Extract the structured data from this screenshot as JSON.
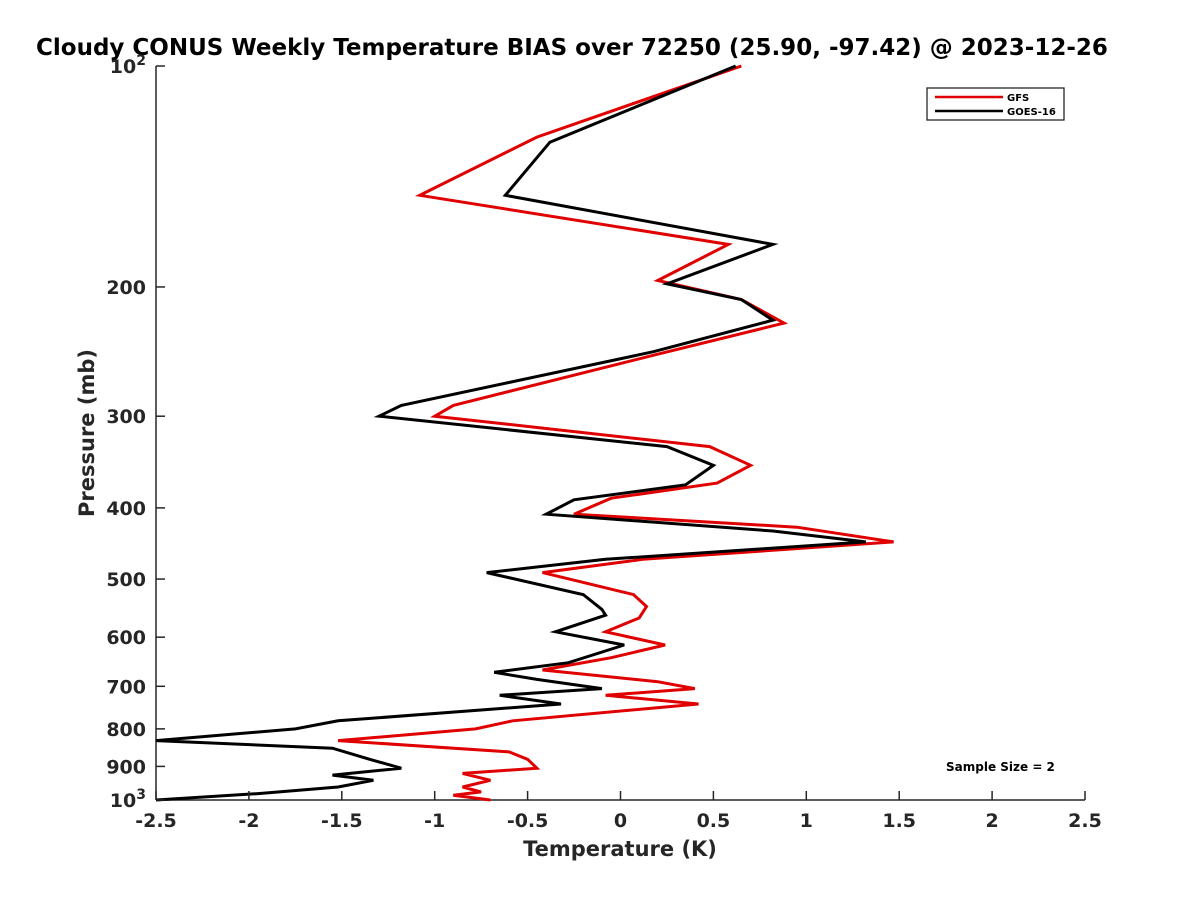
{
  "chart_data": {
    "type": "line",
    "title": "Cloudy CONUS Weekly Temperature BIAS over 72250 (25.90, -97.42) @ 2023-12-26",
    "xlabel": "Temperature (K)",
    "ylabel": "Pressure (mb)",
    "xlim": [
      -2.5,
      2.5
    ],
    "ylim": [
      100,
      1000
    ],
    "yscale": "log",
    "y_reversed": true,
    "grid": false,
    "legend_position": "top-right",
    "x_ticks": [
      "-2.5",
      "-2",
      "-1.5",
      "-1",
      "-0.5",
      "0",
      "0.5",
      "1",
      "1.5",
      "2",
      "2.5"
    ],
    "x_tick_values": [
      -2.5,
      -2,
      -1.5,
      -1,
      -0.5,
      0,
      0.5,
      1,
      1.5,
      2,
      2.5
    ],
    "y_ticks": [
      {
        "value": 100,
        "base": "10",
        "exp": "2"
      },
      {
        "value": 200,
        "base": "200",
        "exp": ""
      },
      {
        "value": 300,
        "base": "300",
        "exp": ""
      },
      {
        "value": 400,
        "base": "400",
        "exp": ""
      },
      {
        "value": 500,
        "base": "500",
        "exp": ""
      },
      {
        "value": 600,
        "base": "600",
        "exp": ""
      },
      {
        "value": 700,
        "base": "700",
        "exp": ""
      },
      {
        "value": 800,
        "base": "800",
        "exp": ""
      },
      {
        "value": 900,
        "base": "900",
        "exp": ""
      },
      {
        "value": 1000,
        "base": "10",
        "exp": "3"
      }
    ],
    "annotation": "Sample Size = 2",
    "series": [
      {
        "name": "GFS",
        "color": "#e00000",
        "points": [
          [
            0.65,
            100
          ],
          [
            -0.45,
            125
          ],
          [
            -1.08,
            150
          ],
          [
            0.58,
            175
          ],
          [
            0.2,
            196
          ],
          [
            0.65,
            208
          ],
          [
            0.88,
            224
          ],
          [
            0.2,
            247
          ],
          [
            -0.9,
            290
          ],
          [
            -1.0,
            300
          ],
          [
            0.48,
            330
          ],
          [
            0.7,
            350
          ],
          [
            0.52,
            370
          ],
          [
            -0.05,
            388
          ],
          [
            -0.25,
            408
          ],
          [
            0.95,
            425
          ],
          [
            1.47,
            445
          ],
          [
            0.12,
            470
          ],
          [
            -0.42,
            490
          ],
          [
            0.07,
            525
          ],
          [
            0.14,
            545
          ],
          [
            0.1,
            565
          ],
          [
            -0.08,
            590
          ],
          [
            0.24,
            615
          ],
          [
            -0.05,
            640
          ],
          [
            -0.42,
            665
          ],
          [
            0.2,
            690
          ],
          [
            0.4,
            705
          ],
          [
            -0.08,
            720
          ],
          [
            0.42,
            740
          ],
          [
            -0.58,
            780
          ],
          [
            -0.78,
            800
          ],
          [
            -1.52,
            830
          ],
          [
            -0.6,
            860
          ],
          [
            -0.5,
            880
          ],
          [
            -0.45,
            905
          ],
          [
            -0.85,
            920
          ],
          [
            -0.7,
            940
          ],
          [
            -0.85,
            960
          ],
          [
            -0.75,
            975
          ],
          [
            -0.9,
            985
          ],
          [
            -0.7,
            1000
          ]
        ]
      },
      {
        "name": "GOES-16",
        "color": "#000000",
        "points": [
          [
            0.62,
            100
          ],
          [
            -0.38,
            127
          ],
          [
            -0.62,
            150
          ],
          [
            0.82,
            175
          ],
          [
            0.25,
            198
          ],
          [
            0.65,
            208
          ],
          [
            0.82,
            222
          ],
          [
            0.18,
            245
          ],
          [
            -1.18,
            290
          ],
          [
            -1.3,
            300
          ],
          [
            0.25,
            330
          ],
          [
            0.5,
            350
          ],
          [
            0.35,
            372
          ],
          [
            -0.25,
            390
          ],
          [
            -0.4,
            408
          ],
          [
            0.82,
            430
          ],
          [
            1.32,
            445
          ],
          [
            -0.08,
            470
          ],
          [
            -0.72,
            490
          ],
          [
            -0.2,
            525
          ],
          [
            -0.1,
            550
          ],
          [
            -0.08,
            560
          ],
          [
            -0.35,
            590
          ],
          [
            0.02,
            615
          ],
          [
            -0.28,
            650
          ],
          [
            -0.68,
            670
          ],
          [
            -0.45,
            685
          ],
          [
            -0.1,
            705
          ],
          [
            -0.65,
            720
          ],
          [
            -0.32,
            740
          ],
          [
            -1.52,
            780
          ],
          [
            -1.75,
            800
          ],
          [
            -2.5,
            830
          ],
          [
            -1.55,
            850
          ],
          [
            -1.35,
            880
          ],
          [
            -1.18,
            905
          ],
          [
            -1.55,
            925
          ],
          [
            -1.33,
            940
          ],
          [
            -1.52,
            960
          ],
          [
            -1.95,
            980
          ],
          [
            -2.5,
            1000
          ]
        ]
      }
    ]
  }
}
